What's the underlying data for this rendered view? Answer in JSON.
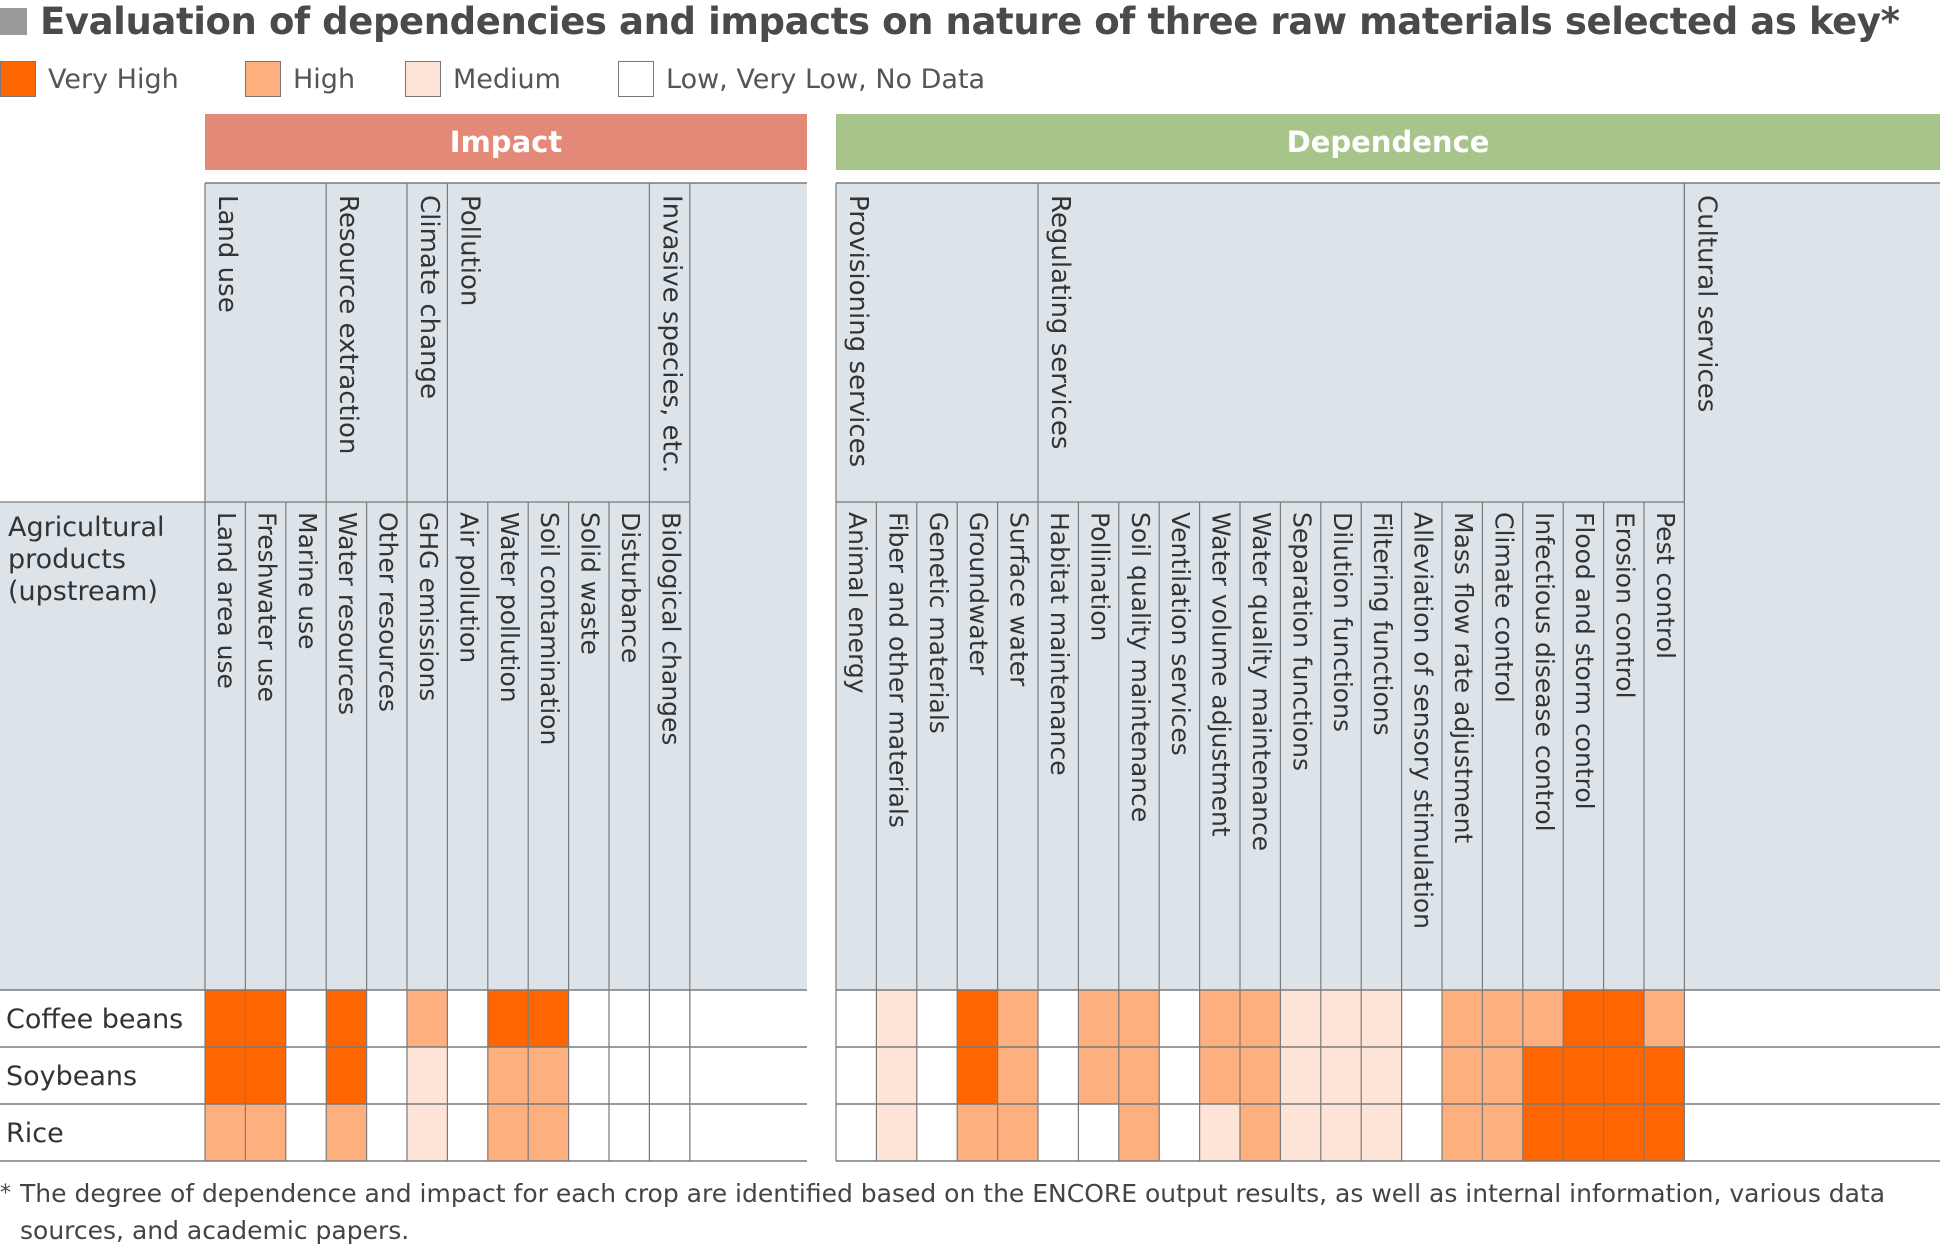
{
  "title": "Evaluation of dependencies and impacts on nature of three raw materials selected as key*",
  "legend": [
    {
      "label": "Very High",
      "level": "vh"
    },
    {
      "label": "High",
      "level": "h"
    },
    {
      "label": "Medium",
      "level": "m"
    },
    {
      "label": "Low, Very Low, No Data",
      "level": "l"
    }
  ],
  "colors": {
    "vh": "#FF6500",
    "h": "#FDAF7E",
    "m": "#FEE4D6",
    "l": "#FFFFFF",
    "header_bg": "#DDE4E9",
    "impact_band": "#E48878",
    "dependence_band": "#A7C58B",
    "grid": "#7a7a7a",
    "text": "#333333"
  },
  "row_header_label": "Agricultural products (upstream)",
  "footnote": {
    "star": "*",
    "text": "The degree of dependence and impact for each crop are identified based on the ENCORE output results, as well as internal information, various data sources, and academic papers."
  },
  "chart_data": {
    "type": "heatmap",
    "scale": [
      "Very High",
      "High",
      "Medium",
      "Low, Very Low, No Data"
    ],
    "rows": [
      "Coffee beans",
      "Soybeans",
      "Rice"
    ],
    "sections": [
      {
        "name": "Impact",
        "groups": [
          {
            "name": "Land use",
            "columns": [
              "Land area use",
              "Freshwater use",
              "Marine use"
            ]
          },
          {
            "name": "Resource extraction",
            "columns": [
              "Water resources",
              "Other resources"
            ]
          },
          {
            "name": "Climate change",
            "columns": [
              "GHG emissions"
            ]
          },
          {
            "name": "Pollution",
            "columns": [
              "Air pollution",
              "Water pollution",
              "Soil contamination",
              "Solid waste",
              "Disturbance"
            ]
          },
          {
            "name": "Invasive species, etc.",
            "columns": [
              "Biological changes"
            ]
          }
        ],
        "values": [
          [
            "Very High",
            "Very High",
            "Low, Very Low, No Data",
            "Very High",
            "Low, Very Low, No Data",
            "High",
            "Low, Very Low, No Data",
            "Very High",
            "Very High",
            "Low, Very Low, No Data",
            "Low, Very Low, No Data",
            "Low, Very Low, No Data"
          ],
          [
            "Very High",
            "Very High",
            "Low, Very Low, No Data",
            "Very High",
            "Low, Very Low, No Data",
            "Medium",
            "Low, Very Low, No Data",
            "High",
            "High",
            "Low, Very Low, No Data",
            "Low, Very Low, No Data",
            "Low, Very Low, No Data"
          ],
          [
            "High",
            "High",
            "Low, Very Low, No Data",
            "High",
            "Low, Very Low, No Data",
            "Medium",
            "Low, Very Low, No Data",
            "High",
            "High",
            "Low, Very Low, No Data",
            "Low, Very Low, No Data",
            "Low, Very Low, No Data"
          ]
        ]
      },
      {
        "name": "Dependence",
        "groups": [
          {
            "name": "Provisioning services",
            "columns": [
              "Animal energy",
              "Fiber and other materials",
              "Genetic materials",
              "Groundwater",
              "Surface water"
            ]
          },
          {
            "name": "Regulating services",
            "columns": [
              "Habitat maintenance",
              "Pollination",
              "Soil quality maintenance",
              "Ventilation services",
              "Water volume adjustment",
              "Water quality maintenance",
              "Separation functions",
              "Dilution functions",
              "Filtering functions",
              "Alleviation of sensory stimulation",
              "Mass flow rate adjustment",
              "Climate control",
              "Infectious disease control",
              "Flood and storm control",
              "Erosion control",
              "Pest control"
            ]
          },
          {
            "name": "Cultural services",
            "columns": []
          }
        ],
        "values": [
          [
            "Low, Very Low, No Data",
            "Medium",
            "Low, Very Low, No Data",
            "Very High",
            "High",
            "Low, Very Low, No Data",
            "High",
            "High",
            "Low, Very Low, No Data",
            "High",
            "High",
            "Medium",
            "Medium",
            "Medium",
            "Low, Very Low, No Data",
            "High",
            "High",
            "High",
            "Very High",
            "Very High",
            "High"
          ],
          [
            "Low, Very Low, No Data",
            "Medium",
            "Low, Very Low, No Data",
            "Very High",
            "High",
            "Low, Very Low, No Data",
            "High",
            "High",
            "Low, Very Low, No Data",
            "High",
            "High",
            "Medium",
            "Medium",
            "Medium",
            "Low, Very Low, No Data",
            "High",
            "High",
            "Very High",
            "Very High",
            "Very High",
            "Very High"
          ],
          [
            "Low, Very Low, No Data",
            "Medium",
            "Low, Very Low, No Data",
            "High",
            "High",
            "Low, Very Low, No Data",
            "Low, Very Low, No Data",
            "High",
            "Low, Very Low, No Data",
            "Medium",
            "High",
            "Medium",
            "Medium",
            "Medium",
            "Low, Very Low, No Data",
            "High",
            "High",
            "Very High",
            "Very High",
            "Very High",
            "Very High"
          ]
        ]
      }
    ]
  }
}
